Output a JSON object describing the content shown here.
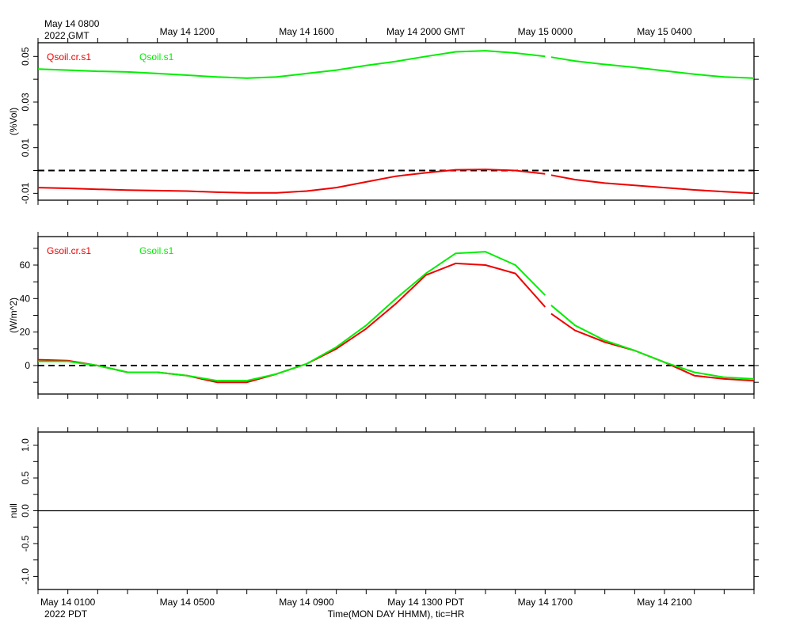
{
  "header": {
    "top_left_line1": "May 14 0800",
    "top_left_line2": "2022 GMT",
    "bottom_left_year": "2022 PDT",
    "xlabel": "Time(MON DAY HHMM), tic=HR"
  },
  "colors": {
    "red": "#ee0000",
    "green": "#00ee00",
    "axis": "#000000"
  },
  "chart_data": [
    {
      "type": "line",
      "title": "",
      "xlabel": "",
      "ylabel": "(%Vol)",
      "x_range_hours": [
        -1,
        23
      ],
      "ylim": [
        -0.013,
        0.056
      ],
      "yticks": [
        -0.01,
        0.01,
        0.03,
        0.05
      ],
      "ytick_labels": [
        "-0.01",
        "0.01",
        "0.03",
        "0.05"
      ],
      "zero_line": "dashed",
      "legend_placement": "top-left",
      "top_axis_labels": [
        {
          "hour": 4,
          "label": "May 14 1200"
        },
        {
          "hour": 8,
          "label": "May 14 1600"
        },
        {
          "hour": 12,
          "label": "May 14 2000 GMT"
        },
        {
          "hour": 16,
          "label": "May 15 0000"
        },
        {
          "hour": 20,
          "label": "May 15 0400"
        }
      ],
      "series": [
        {
          "name": "Qsoil.cr.s1",
          "color": "#ee0000",
          "segments": [
            {
              "x": [
                -1,
                0,
                1,
                2,
                3,
                4,
                5,
                6,
                7,
                8,
                9,
                10,
                11,
                12,
                13,
                14,
                15,
                16
              ],
              "y": [
                -0.0075,
                -0.0078,
                -0.0082,
                -0.0086,
                -0.0088,
                -0.009,
                -0.0095,
                -0.0098,
                -0.0098,
                -0.009,
                -0.0075,
                -0.005,
                -0.0025,
                -0.001,
                0.0003,
                0.0005,
                0.0,
                -0.0015
              ]
            },
            {
              "x": [
                16.2,
                17,
                18,
                19,
                20,
                21,
                22,
                23
              ],
              "y": [
                -0.002,
                -0.004,
                -0.0055,
                -0.0065,
                -0.0075,
                -0.0085,
                -0.0093,
                -0.01
              ]
            }
          ]
        },
        {
          "name": "Qsoil.s1",
          "color": "#00ee00",
          "segments": [
            {
              "x": [
                -1,
                0,
                1,
                2,
                3,
                4,
                5,
                6,
                7,
                8,
                9,
                10,
                11,
                12,
                13,
                14,
                15,
                16
              ],
              "y": [
                0.0445,
                0.044,
                0.0435,
                0.0432,
                0.0425,
                0.0418,
                0.041,
                0.0405,
                0.041,
                0.0425,
                0.044,
                0.046,
                0.0478,
                0.05,
                0.052,
                0.0525,
                0.0515,
                0.05
              ]
            },
            {
              "x": [
                16.2,
                17,
                18,
                19,
                20,
                21,
                22,
                23
              ],
              "y": [
                0.0497,
                0.048,
                0.0465,
                0.0452,
                0.0437,
                0.0422,
                0.041,
                0.0405
              ]
            }
          ]
        }
      ]
    },
    {
      "type": "line",
      "title": "",
      "xlabel": "",
      "ylabel": "(W/m^2)",
      "x_range_hours": [
        -1,
        23
      ],
      "ylim": [
        -17,
        77
      ],
      "yticks": [
        0,
        20,
        40,
        60
      ],
      "ytick_labels": [
        "0",
        "20",
        "40",
        "60"
      ],
      "zero_line": "dashed",
      "legend_placement": "top-left",
      "series": [
        {
          "name": "Gsoil.cr.s1",
          "color": "#ee0000",
          "segments": [
            {
              "x": [
                -1,
                0,
                1,
                2,
                3,
                4,
                5,
                6,
                7,
                8,
                9,
                10,
                11,
                12,
                13,
                14,
                15,
                16
              ],
              "y": [
                3.5,
                3,
                0,
                -4,
                -4,
                -6,
                -10,
                -10,
                -5,
                1,
                10,
                22,
                37,
                54,
                61,
                60,
                55,
                35
              ]
            },
            {
              "x": [
                16.2,
                17,
                18,
                19,
                20,
                21,
                22,
                23
              ],
              "y": [
                31,
                21,
                14,
                9,
                2,
                -6,
                -8,
                -9
              ]
            }
          ]
        },
        {
          "name": "Gsoil.s1",
          "color": "#00ee00",
          "segments": [
            {
              "x": [
                -1,
                0,
                1,
                2,
                3,
                4,
                5,
                6,
                7,
                8,
                9,
                10,
                11,
                12,
                13,
                14,
                15,
                16
              ],
              "y": [
                2.5,
                2.5,
                0,
                -4,
                -4,
                -6,
                -9,
                -9,
                -5,
                1,
                11,
                24,
                40,
                55,
                67,
                68,
                60,
                42
              ]
            },
            {
              "x": [
                16.2,
                17,
                18,
                19,
                20,
                21,
                22,
                23
              ],
              "y": [
                36,
                24,
                15,
                9,
                2,
                -4,
                -7,
                -8
              ]
            }
          ]
        }
      ]
    },
    {
      "type": "line",
      "title": "",
      "xlabel": "Time(MON DAY HHMM), tic=HR",
      "ylabel": "null",
      "x_range_hours": [
        -1,
        23
      ],
      "ylim": [
        -1.2,
        1.2
      ],
      "yticks": [
        -1.0,
        -0.5,
        0.0,
        0.5,
        1.0
      ],
      "ytick_labels": [
        "-1.0",
        "-0.5",
        "0.0",
        "0.5",
        "1.0"
      ],
      "zero_line": "solid",
      "bottom_axis_labels": [
        {
          "hour": 0,
          "label": "May 14 0100"
        },
        {
          "hour": 4,
          "label": "May 14 0500"
        },
        {
          "hour": 8,
          "label": "May 14 0900"
        },
        {
          "hour": 12,
          "label": "May 14 1300 PDT"
        },
        {
          "hour": 16,
          "label": "May 14 1700"
        },
        {
          "hour": 20,
          "label": "May 14 2100"
        }
      ],
      "series": []
    }
  ]
}
